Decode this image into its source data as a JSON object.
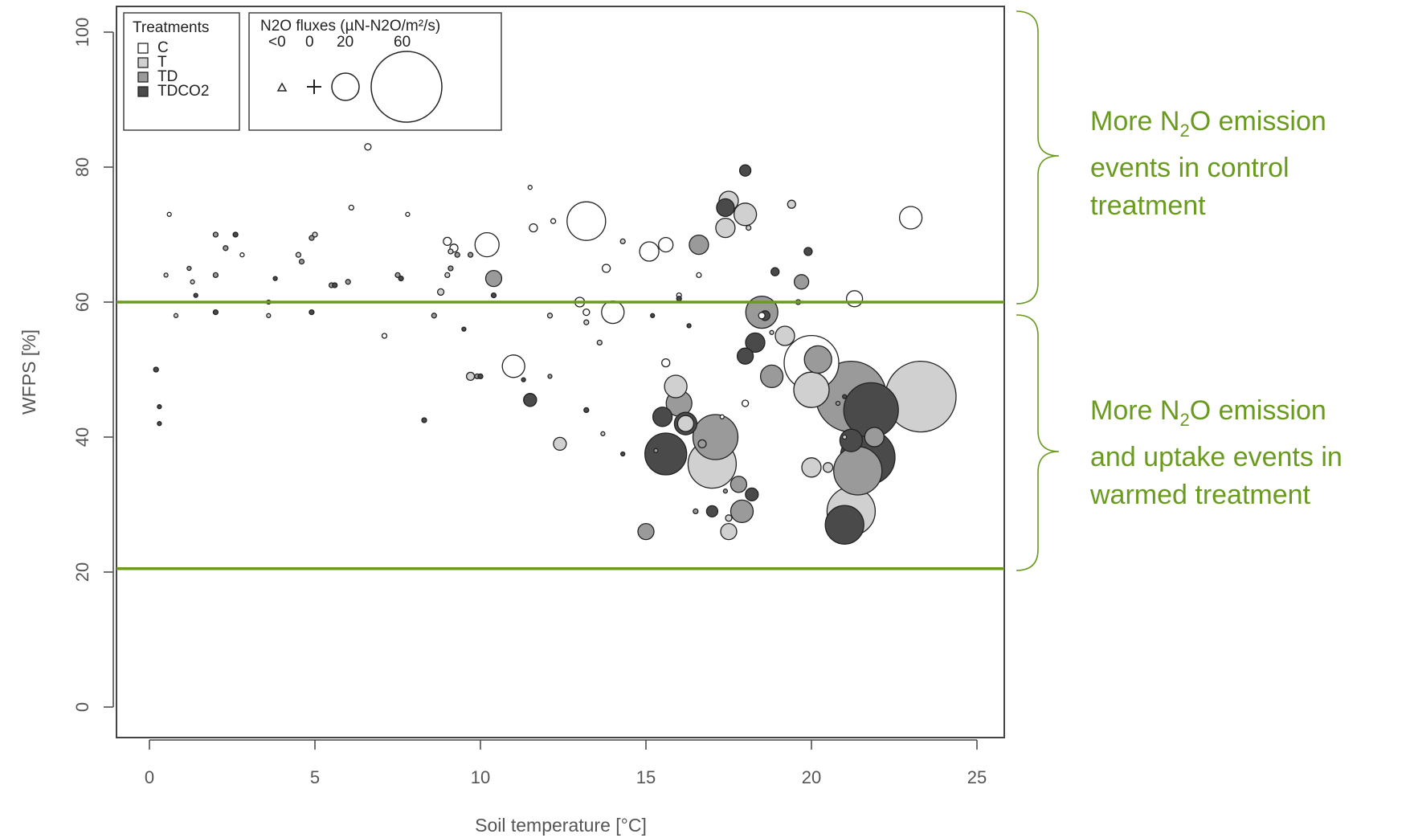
{
  "chart_data": {
    "type": "scatter",
    "title": "",
    "xlabel": "Soil temperature [°C]",
    "ylabel": "WFPS [%]",
    "xlim": [
      -1,
      26
    ],
    "ylim": [
      -4,
      104
    ],
    "xticks": [
      "0",
      "5",
      "10",
      "15",
      "20",
      "25"
    ],
    "yticks": [
      "0",
      "20",
      "40",
      "60",
      "80",
      "100"
    ],
    "grid": false,
    "legend_treatments": {
      "title": "Treatments",
      "position": "top-left",
      "entries": [
        {
          "name": "C",
          "color": "#ffffff"
        },
        {
          "name": "T",
          "color": "#d0d0d0"
        },
        {
          "name": "TD",
          "color": "#9a9a9a"
        },
        {
          "name": "TDCO2",
          "color": "#4a4a4a"
        }
      ]
    },
    "legend_sizes": {
      "title": "N2O fluxes (µN-N2O/m²/s)",
      "labels": [
        "<0",
        "0",
        "20",
        "60"
      ]
    },
    "hlines": [
      {
        "y": 60,
        "color": "#6a9a1f"
      },
      {
        "y": 20.5,
        "color": "#6a9a1f"
      }
    ],
    "series": [
      {
        "treatment": "C",
        "color": "#ffffff",
        "points": [
          [
            0.6,
            73,
            2
          ],
          [
            2.8,
            67,
            2
          ],
          [
            6.1,
            74,
            3
          ],
          [
            6.6,
            83,
            4
          ],
          [
            7.1,
            55,
            3
          ],
          [
            7.8,
            73,
            2
          ],
          [
            9.0,
            69,
            5
          ],
          [
            9.2,
            68,
            5
          ],
          [
            10.2,
            68.5,
            15
          ],
          [
            11.5,
            77,
            2
          ],
          [
            11.6,
            71,
            5
          ],
          [
            12.2,
            72,
            3
          ],
          [
            11.0,
            50.5,
            14
          ],
          [
            13.0,
            60,
            6
          ],
          [
            13.2,
            58.5,
            4
          ],
          [
            13.2,
            72,
            24
          ],
          [
            13.8,
            65,
            5
          ],
          [
            14.0,
            58.5,
            14
          ],
          [
            15.1,
            67.5,
            12
          ],
          [
            15.6,
            68.5,
            9
          ],
          [
            15.6,
            51,
            5
          ],
          [
            16.0,
            61,
            3
          ],
          [
            16.6,
            64,
            3
          ],
          [
            17.3,
            43,
            2
          ],
          [
            18.0,
            45,
            4
          ],
          [
            18.5,
            58,
            4
          ],
          [
            20.0,
            51,
            34
          ],
          [
            21.3,
            60.5,
            10
          ],
          [
            23.0,
            72.5,
            14
          ]
        ]
      },
      {
        "treatment": "T",
        "color": "#d0d0d0",
        "points": [
          [
            0.5,
            64,
            2
          ],
          [
            0.8,
            58,
            2
          ],
          [
            1.3,
            63,
            2
          ],
          [
            3.6,
            58,
            2
          ],
          [
            4.5,
            67,
            3
          ],
          [
            5.0,
            70,
            3
          ],
          [
            8.8,
            61.5,
            4
          ],
          [
            9.0,
            64,
            3
          ],
          [
            9.1,
            67.5,
            3
          ],
          [
            9.7,
            49,
            5
          ],
          [
            12.1,
            58,
            3
          ],
          [
            12.4,
            39,
            8
          ],
          [
            13.2,
            57,
            3
          ],
          [
            13.6,
            54,
            3
          ],
          [
            13.7,
            40.5,
            2
          ],
          [
            14.3,
            69,
            3
          ],
          [
            15.9,
            47.5,
            14
          ],
          [
            16.2,
            42,
            10
          ],
          [
            17.0,
            36,
            30
          ],
          [
            17.4,
            71,
            12
          ],
          [
            17.5,
            75,
            12
          ],
          [
            17.5,
            28,
            4
          ],
          [
            17.5,
            26,
            10
          ],
          [
            18.0,
            73,
            14
          ],
          [
            18.1,
            71,
            3
          ],
          [
            18.8,
            55.5,
            2
          ],
          [
            19.4,
            74.5,
            5
          ],
          [
            19.2,
            55,
            12
          ],
          [
            19.6,
            60,
            3
          ],
          [
            20.0,
            47,
            22
          ],
          [
            20.0,
            35.5,
            12
          ],
          [
            20.5,
            35.5,
            6
          ],
          [
            21.0,
            40,
            2
          ],
          [
            21.2,
            29,
            30
          ],
          [
            23.3,
            46,
            44
          ]
        ]
      },
      {
        "treatment": "TD",
        "color": "#9a9a9a",
        "points": [
          [
            1.2,
            65,
            2
          ],
          [
            2.0,
            64,
            3
          ],
          [
            2.0,
            70,
            3
          ],
          [
            2.3,
            68,
            3
          ],
          [
            3.6,
            60,
            2
          ],
          [
            4.6,
            66,
            3
          ],
          [
            4.9,
            69.5,
            3
          ],
          [
            5.5,
            62.5,
            3
          ],
          [
            6.0,
            63,
            3
          ],
          [
            7.5,
            64,
            3
          ],
          [
            8.6,
            58,
            3
          ],
          [
            9.1,
            65,
            3
          ],
          [
            9.3,
            67,
            3
          ],
          [
            9.7,
            67,
            3
          ],
          [
            9.9,
            49,
            3
          ],
          [
            10.4,
            63.5,
            10
          ],
          [
            11.5,
            45.5,
            8
          ],
          [
            12.1,
            49,
            2
          ],
          [
            15.0,
            26,
            10
          ],
          [
            15.3,
            38,
            2
          ],
          [
            16.0,
            45,
            16
          ],
          [
            16.5,
            29,
            3
          ],
          [
            16.6,
            68.5,
            12
          ],
          [
            16.7,
            39,
            5
          ],
          [
            17.1,
            40,
            28
          ],
          [
            17.4,
            32,
            2
          ],
          [
            17.8,
            33,
            10
          ],
          [
            17.9,
            29,
            14
          ],
          [
            18.5,
            58.5,
            20
          ],
          [
            18.8,
            49,
            14
          ],
          [
            19.7,
            63,
            9
          ],
          [
            20.2,
            51.5,
            17
          ],
          [
            20.8,
            45,
            2
          ],
          [
            21.2,
            46,
            44
          ],
          [
            21.4,
            35,
            30
          ],
          [
            21.9,
            40,
            12
          ]
        ]
      },
      {
        "treatment": "TDCO2",
        "color": "#4a4a4a",
        "points": [
          [
            0.2,
            50,
            3
          ],
          [
            0.3,
            44.5,
            2
          ],
          [
            0.3,
            42,
            2
          ],
          [
            1.4,
            61,
            2
          ],
          [
            2.0,
            58.5,
            3
          ],
          [
            2.6,
            70,
            3
          ],
          [
            3.8,
            63.5,
            2
          ],
          [
            4.9,
            58.5,
            3
          ],
          [
            5.6,
            62.5,
            3
          ],
          [
            7.6,
            63.5,
            3
          ],
          [
            8.3,
            42.5,
            3
          ],
          [
            9.5,
            56,
            2
          ],
          [
            10.0,
            49,
            3
          ],
          [
            10.4,
            61,
            3
          ],
          [
            11.3,
            48.5,
            2
          ],
          [
            11.5,
            45.5,
            8
          ],
          [
            13.2,
            44,
            3
          ],
          [
            14.3,
            37.5,
            2
          ],
          [
            15.2,
            58,
            2
          ],
          [
            15.5,
            43,
            12
          ],
          [
            15.6,
            37.5,
            26
          ],
          [
            16.0,
            60.5,
            3
          ],
          [
            16.3,
            56.5,
            2
          ],
          [
            16.2,
            42,
            14
          ],
          [
            17.0,
            29,
            7
          ],
          [
            17.4,
            74,
            11
          ],
          [
            18.0,
            79.5,
            7
          ],
          [
            18.2,
            31.5,
            8
          ],
          [
            18.0,
            52,
            10
          ],
          [
            18.3,
            54,
            12
          ],
          [
            18.6,
            58,
            6
          ],
          [
            18.9,
            64.5,
            5
          ],
          [
            19.9,
            67.5,
            5
          ],
          [
            21.0,
            46,
            2
          ],
          [
            21.0,
            27,
            24
          ],
          [
            21.2,
            39.5,
            14
          ],
          [
            21.7,
            37,
            34
          ],
          [
            21.8,
            44,
            34
          ]
        ]
      }
    ]
  },
  "annotations": {
    "upper": {
      "line1_a": "More N",
      "line1_sub": "2",
      "line1_b": "O emission",
      "line2": "events in control",
      "line3": "treatment"
    },
    "lower": {
      "line1_a": "More N",
      "line1_sub": "2",
      "line1_b": "O emission",
      "line2": "and uptake events in",
      "line3": "warmed treatment"
    }
  }
}
